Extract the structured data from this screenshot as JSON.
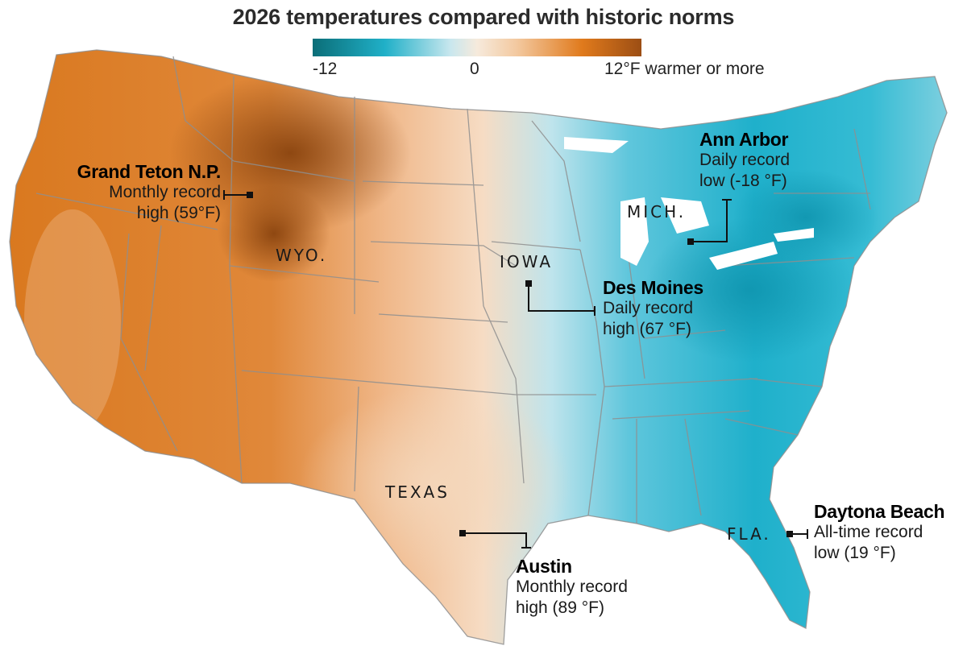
{
  "title": "2026 temperatures compared with historic norms",
  "legend": {
    "min_label": "-12",
    "mid_label": "0",
    "max_label": "12°F warmer or more",
    "colors": {
      "cold": "#0b6e78",
      "cool": "#20b0c8",
      "neutral": "#f6eadc",
      "warm": "#e07a1c",
      "hot": "#9c4e14"
    }
  },
  "state_labels": [
    "WYO.",
    "IOWA",
    "MICH.",
    "TEXAS",
    "FLA."
  ],
  "annotations": {
    "grand_teton": {
      "name": "Grand Teton N.P.",
      "line1": "Monthly record",
      "line2": "high (59°F)"
    },
    "ann_arbor": {
      "name": "Ann Arbor",
      "line1": "Daily record",
      "line2": "low (-18 °F)"
    },
    "des_moines": {
      "name": "Des Moines",
      "line1": "Daily record",
      "line2": "high (67 °F)"
    },
    "austin": {
      "name": "Austin",
      "line1": "Monthly record",
      "line2": "high (89 °F)"
    },
    "daytona": {
      "name": "Daytona Beach",
      "line1": "All-time record",
      "line2": "low (19 °F)"
    }
  }
}
